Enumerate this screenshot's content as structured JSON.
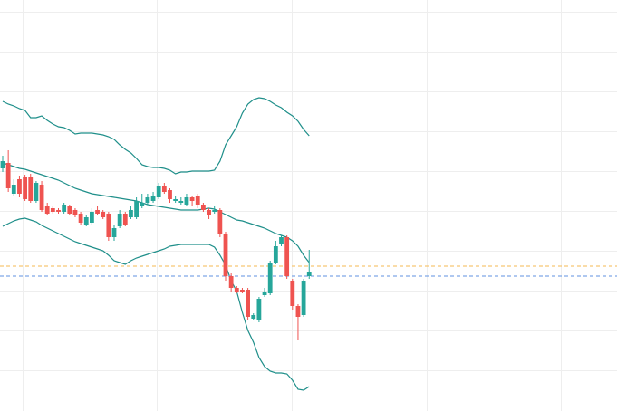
{
  "chart_data": {
    "type": "candlestick",
    "ylim": [
      0,
      454
    ],
    "yticks": [
      45,
      89,
      133,
      177,
      221,
      265,
      309,
      353,
      397,
      441
    ],
    "grid": true,
    "up_color": "#26a69a",
    "down_color": "#ef5350",
    "open": [
      268,
      274,
      240,
      256,
      259,
      258,
      232,
      250,
      226,
      224,
      222,
      220,
      226,
      222,
      218,
      206,
      208,
      222,
      220,
      218,
      192,
      204,
      218,
      214,
      214,
      226,
      230,
      232,
      236,
      248,
      244,
      232,
      230,
      228,
      236,
      238,
      228,
      222,
      220,
      222,
      196,
      149,
      136,
      134,
      134,
      102,
      100,
      128,
      130,
      164,
      184,
      192,
      144,
      116,
      106,
      149
    ],
    "high": [
      282,
      288,
      256,
      260,
      261,
      262,
      254,
      254,
      230,
      226,
      224,
      230,
      228,
      224,
      220,
      216,
      224,
      226,
      222,
      220,
      206,
      222,
      220,
      226,
      236,
      240,
      240,
      242,
      252,
      252,
      246,
      238,
      236,
      240,
      238,
      240,
      230,
      224,
      226,
      224,
      198,
      152,
      138,
      136,
      136,
      108,
      126,
      136,
      166,
      188,
      194,
      194,
      146,
      118,
      146,
      178
    ],
    "low": [
      264,
      242,
      238,
      236,
      232,
      230,
      230,
      220,
      216,
      218,
      218,
      218,
      216,
      214,
      206,
      204,
      206,
      216,
      212,
      188,
      188,
      202,
      204,
      212,
      212,
      224,
      228,
      230,
      234,
      240,
      230,
      230,
      228,
      226,
      226,
      224,
      220,
      212,
      218,
      192,
      144,
      132,
      130,
      130,
      100,
      100,
      98,
      126,
      128,
      162,
      182,
      146,
      112,
      78,
      104,
      146
    ],
    "close": [
      276,
      246,
      250,
      240,
      234,
      232,
      252,
      222,
      218,
      220,
      220,
      228,
      218,
      216,
      208,
      214,
      220,
      218,
      214,
      192,
      202,
      218,
      206,
      222,
      232,
      230,
      236,
      238,
      248,
      242,
      234,
      234,
      232,
      236,
      232,
      228,
      222,
      216,
      222,
      196,
      149,
      136,
      132,
      132,
      104,
      106,
      124,
      132,
      164,
      182,
      192,
      149,
      116,
      104,
      144,
      154
    ],
    "series": [
      {
        "color": "#1f8f8a",
        "values": [
          342,
          339,
          337,
          334,
          332,
          324,
          324,
          326,
          321,
          317,
          314,
          313,
          310,
          306,
          307,
          307,
          307,
          306,
          305,
          303,
          300,
          294,
          289,
          285,
          279,
          272,
          270,
          269,
          269,
          268,
          266,
          262,
          264,
          264,
          265,
          265,
          265,
          265,
          266,
          276,
          294,
          304,
          314,
          329,
          339,
          344,
          346,
          345,
          342,
          338,
          335,
          330,
          326,
          320,
          311,
          304
        ]
      },
      {
        "color": "#1f8f8a",
        "values": [
          274,
          272,
          270,
          268,
          267,
          265,
          263,
          261,
          259,
          257,
          255,
          252,
          249,
          246,
          244,
          242,
          240,
          239,
          238,
          237,
          236,
          235,
          234,
          233,
          232,
          230,
          228,
          227,
          226,
          225,
          224,
          223,
          222,
          222,
          222,
          222,
          223,
          224,
          223,
          220,
          217,
          214,
          211,
          210,
          208,
          206,
          204,
          202,
          199,
          196,
          194,
          192,
          188,
          182,
          172,
          164
        ]
      },
      {
        "color": "#1f8f8a",
        "values": [
          204,
          207,
          210,
          212,
          213,
          211,
          209,
          205,
          202,
          199,
          196,
          193,
          190,
          187,
          185,
          183,
          181,
          179,
          177,
          172,
          166,
          164,
          162,
          166,
          169,
          171,
          173,
          175,
          177,
          179,
          182,
          183,
          184,
          184,
          184,
          184,
          184,
          184,
          181,
          172,
          161,
          144,
          132,
          109,
          89,
          76,
          59,
          49,
          44,
          42,
          42,
          41,
          34,
          24,
          23,
          27
        ]
      }
    ],
    "reference_lines": [
      {
        "value": 160,
        "color": "#f7c873"
      },
      {
        "value": 149,
        "color": "#7fa8e8"
      }
    ]
  }
}
